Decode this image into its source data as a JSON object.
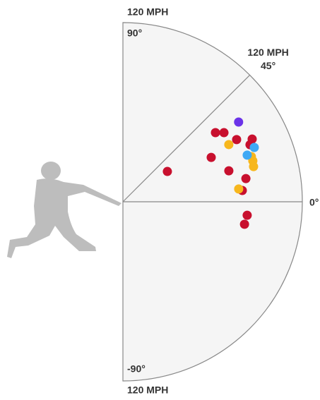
{
  "chart_data": {
    "type": "polar-scatter",
    "rlim": [
      0,
      120
    ],
    "rticks": [
      {
        "value": 120,
        "label": "120 MPH"
      }
    ],
    "angle_ticks": [
      {
        "value": 90,
        "label": "90°"
      },
      {
        "value": 45,
        "label": "45°"
      },
      {
        "value": 0,
        "label": "0°"
      },
      {
        "value": -90,
        "label": "-90°"
      }
    ],
    "series": [
      {
        "color": "#c8102e",
        "angle": [
          36.8,
          34.4,
          28.7,
          25.9,
          24.2,
          26.7,
          34.3,
          16.3,
          10.7,
          5.4,
          -6.2,
          -10.5
        ],
        "values": [
          77.3,
          81.9,
          86.7,
          96.1,
          93.2,
          66.1,
          36.0,
          73.8,
          83.7,
          80.2,
          83.6,
          82.7
        ]
      },
      {
        "color": "#f7b71d",
        "angle": [
          28.4,
          19.4,
          17.5,
          15.1,
          6.3
        ],
        "values": [
          80.5,
          91.1,
          91.1,
          90.5,
          77.9
        ]
      },
      {
        "color": "#3ea9f5",
        "angle": [
          22.5,
          20.6
        ],
        "values": [
          95.1,
          88.8
        ]
      },
      {
        "color": "#6b33e8",
        "angle": [
          34.6
        ],
        "values": [
          94.0
        ]
      }
    ]
  }
}
